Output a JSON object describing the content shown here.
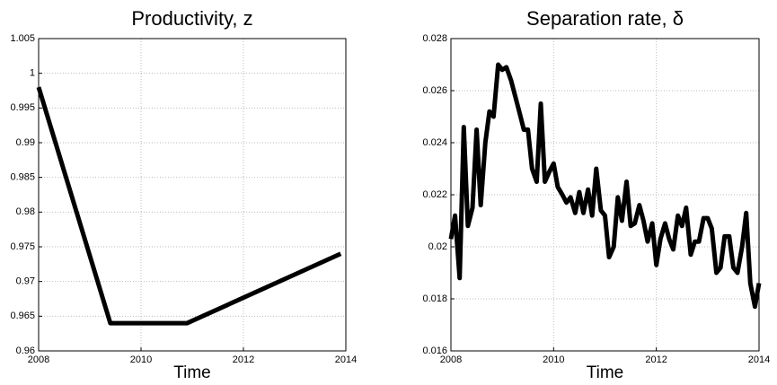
{
  "chart_data": [
    {
      "type": "line",
      "title": "Productivity, z",
      "xlabel": "Time",
      "x": [
        2008,
        2009.4,
        2010.9,
        2013.9
      ],
      "series": [
        {
          "color": "#000000",
          "values": [
            0.998,
            0.964,
            0.964,
            0.974
          ]
        }
      ],
      "xlim": [
        2008,
        2014
      ],
      "xticks": [
        2008,
        2010,
        2012,
        2014
      ],
      "ylim": [
        0.96,
        1.005
      ],
      "yticks": [
        0.96,
        0.965,
        0.97,
        0.975,
        0.98,
        0.985,
        0.99,
        0.995,
        1,
        1.005
      ],
      "grid": true
    },
    {
      "type": "line",
      "title": "Separation rate, δ",
      "xlabel": "Time",
      "x": [
        2008,
        2008.08,
        2008.17,
        2008.25,
        2008.33,
        2008.42,
        2008.5,
        2008.58,
        2008.67,
        2008.75,
        2008.83,
        2008.92,
        2009,
        2009.08,
        2009.17,
        2009.25,
        2009.33,
        2009.42,
        2009.5,
        2009.58,
        2009.67,
        2009.75,
        2009.83,
        2009.92,
        2010,
        2010.08,
        2010.17,
        2010.25,
        2010.33,
        2010.42,
        2010.5,
        2010.58,
        2010.67,
        2010.75,
        2010.83,
        2010.92,
        2011,
        2011.08,
        2011.17,
        2011.25,
        2011.33,
        2011.42,
        2011.5,
        2011.58,
        2011.67,
        2011.75,
        2011.83,
        2011.92,
        2012,
        2012.08,
        2012.17,
        2012.25,
        2012.33,
        2012.42,
        2012.5,
        2012.58,
        2012.67,
        2012.75,
        2012.83,
        2012.92,
        2013,
        2013.08,
        2013.17,
        2013.25,
        2013.33,
        2013.42,
        2013.5,
        2013.58,
        2013.67,
        2013.75,
        2013.83,
        2013.92,
        2014
      ],
      "series": [
        {
          "color": "#000000",
          "values": [
            0.0203,
            0.0212,
            0.0188,
            0.0246,
            0.0208,
            0.0215,
            0.0245,
            0.0216,
            0.024,
            0.0252,
            0.025,
            0.027,
            0.0268,
            0.0269,
            0.0264,
            0.0258,
            0.0252,
            0.0245,
            0.0245,
            0.023,
            0.0225,
            0.0255,
            0.0225,
            0.0229,
            0.0232,
            0.0223,
            0.022,
            0.0217,
            0.0219,
            0.0213,
            0.0221,
            0.0213,
            0.0222,
            0.0212,
            0.023,
            0.0214,
            0.0212,
            0.0196,
            0.02,
            0.0219,
            0.021,
            0.0225,
            0.0208,
            0.0209,
            0.0216,
            0.021,
            0.0202,
            0.0209,
            0.0193,
            0.0203,
            0.0209,
            0.0203,
            0.0199,
            0.0212,
            0.0208,
            0.0215,
            0.0197,
            0.0202,
            0.0202,
            0.0211,
            0.0211,
            0.0207,
            0.019,
            0.0192,
            0.0204,
            0.0204,
            0.0192,
            0.019,
            0.02,
            0.0213,
            0.0186,
            0.0177,
            0.0186
          ]
        }
      ],
      "xlim": [
        2008,
        2014
      ],
      "xticks": [
        2008,
        2010,
        2012,
        2014
      ],
      "ylim": [
        0.016,
        0.028
      ],
      "yticks": [
        0.016,
        0.018,
        0.02,
        0.022,
        0.024,
        0.026,
        0.028
      ],
      "grid": true
    }
  ]
}
